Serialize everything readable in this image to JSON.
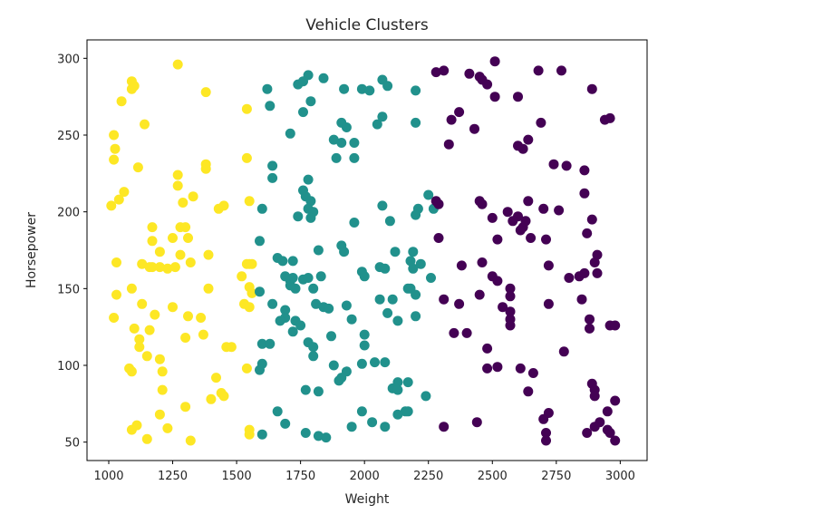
{
  "chart_data": {
    "type": "scatter",
    "title": "Vehicle Clusters",
    "xlabel": "Weight",
    "ylabel": "Horsepower",
    "xlim": [
      915,
      3105
    ],
    "ylim": [
      38,
      312
    ],
    "xticks": [
      1000,
      1250,
      1500,
      1750,
      2000,
      2250,
      2500,
      2750,
      3000
    ],
    "yticks": [
      50,
      100,
      150,
      200,
      250,
      300
    ],
    "grid": false,
    "legend": "none",
    "colors": {
      "cluster_0": "#440154",
      "cluster_1": "#21918c",
      "cluster_2": "#fde725"
    },
    "series": [
      {
        "cluster": 2,
        "color": "#fde725",
        "points": [
          [
            1090,
            285
          ],
          [
            1090,
            280
          ],
          [
            1050,
            272
          ],
          [
            1100,
            282
          ],
          [
            1270,
            296
          ],
          [
            1020,
            250
          ],
          [
            1140,
            257
          ],
          [
            1025,
            241
          ],
          [
            1020,
            234
          ],
          [
            1115,
            229
          ],
          [
            1380,
            278
          ],
          [
            1380,
            231
          ],
          [
            1380,
            228
          ],
          [
            1270,
            224
          ],
          [
            1270,
            217
          ],
          [
            1060,
            213
          ],
          [
            1040,
            208
          ],
          [
            1010,
            204
          ],
          [
            1290,
            206
          ],
          [
            1330,
            210
          ],
          [
            1430,
            202
          ],
          [
            1450,
            204
          ],
          [
            1170,
            190
          ],
          [
            1280,
            190
          ],
          [
            1300,
            190
          ],
          [
            1310,
            183
          ],
          [
            1250,
            183
          ],
          [
            1170,
            181
          ],
          [
            1200,
            174
          ],
          [
            1280,
            172
          ],
          [
            1390,
            172
          ],
          [
            1030,
            167
          ],
          [
            1130,
            166
          ],
          [
            1160,
            164
          ],
          [
            1170,
            164
          ],
          [
            1200,
            164
          ],
          [
            1230,
            163
          ],
          [
            1260,
            164
          ],
          [
            1320,
            167
          ],
          [
            1090,
            150
          ],
          [
            1030,
            146
          ],
          [
            1390,
            150
          ],
          [
            1130,
            140
          ],
          [
            1250,
            138
          ],
          [
            1310,
            132
          ],
          [
            1180,
            133
          ],
          [
            1020,
            131
          ],
          [
            1360,
            131
          ],
          [
            1100,
            124
          ],
          [
            1160,
            123
          ],
          [
            1120,
            117
          ],
          [
            1120,
            112
          ],
          [
            1300,
            118
          ],
          [
            1370,
            120
          ],
          [
            1150,
            106
          ],
          [
            1200,
            104
          ],
          [
            1080,
            98
          ],
          [
            1090,
            96
          ],
          [
            1210,
            96
          ],
          [
            1420,
            92
          ],
          [
            1440,
            82
          ],
          [
            1450,
            80
          ],
          [
            1400,
            78
          ],
          [
            1210,
            84
          ],
          [
            1300,
            73
          ],
          [
            1200,
            68
          ],
          [
            1110,
            61
          ],
          [
            1090,
            58
          ],
          [
            1230,
            59
          ],
          [
            1150,
            52
          ],
          [
            1320,
            51
          ],
          [
            1540,
            267
          ],
          [
            1540,
            235
          ],
          [
            1550,
            207
          ],
          [
            1520,
            158
          ],
          [
            1540,
            166
          ],
          [
            1550,
            166
          ],
          [
            1560,
            166
          ],
          [
            1550,
            151
          ],
          [
            1560,
            147
          ],
          [
            1530,
            140
          ],
          [
            1550,
            138
          ],
          [
            1460,
            112
          ],
          [
            1480,
            112
          ],
          [
            1540,
            98
          ],
          [
            1550,
            58
          ],
          [
            1550,
            55
          ]
        ]
      },
      {
        "cluster": 1,
        "color": "#21918c",
        "points": [
          [
            1620,
            280
          ],
          [
            1780,
            289
          ],
          [
            1740,
            283
          ],
          [
            1760,
            285
          ],
          [
            1840,
            287
          ],
          [
            1920,
            280
          ],
          [
            1990,
            280
          ],
          [
            2020,
            279
          ],
          [
            2070,
            286
          ],
          [
            2090,
            282
          ],
          [
            2200,
            279
          ],
          [
            1790,
            272
          ],
          [
            1630,
            269
          ],
          [
            1760,
            265
          ],
          [
            1910,
            258
          ],
          [
            1930,
            255
          ],
          [
            2050,
            257
          ],
          [
            2070,
            262
          ],
          [
            2200,
            258
          ],
          [
            1710,
            251
          ],
          [
            1880,
            247
          ],
          [
            1910,
            245
          ],
          [
            1960,
            245
          ],
          [
            1890,
            235
          ],
          [
            1960,
            235
          ],
          [
            1640,
            230
          ],
          [
            1640,
            222
          ],
          [
            1780,
            221
          ],
          [
            1760,
            214
          ],
          [
            1770,
            210
          ],
          [
            1790,
            207
          ],
          [
            1780,
            202
          ],
          [
            1800,
            200
          ],
          [
            1740,
            197
          ],
          [
            1790,
            196
          ],
          [
            2070,
            204
          ],
          [
            2100,
            194
          ],
          [
            1960,
            193
          ],
          [
            2210,
            202
          ],
          [
            2250,
            211
          ],
          [
            2200,
            198
          ],
          [
            2270,
            202
          ],
          [
            1600,
            202
          ],
          [
            1590,
            181
          ],
          [
            1660,
            170
          ],
          [
            1680,
            168
          ],
          [
            1720,
            168
          ],
          [
            1820,
            175
          ],
          [
            1910,
            178
          ],
          [
            1920,
            174
          ],
          [
            2060,
            164
          ],
          [
            2080,
            163
          ],
          [
            2120,
            174
          ],
          [
            2190,
            174
          ],
          [
            2220,
            166
          ],
          [
            2180,
            168
          ],
          [
            2190,
            163
          ],
          [
            1690,
            158
          ],
          [
            1720,
            157
          ],
          [
            1730,
            150
          ],
          [
            1710,
            155
          ],
          [
            1710,
            152
          ],
          [
            1760,
            156
          ],
          [
            1780,
            157
          ],
          [
            1830,
            158
          ],
          [
            1800,
            150
          ],
          [
            1990,
            161
          ],
          [
            2000,
            158
          ],
          [
            2170,
            150
          ],
          [
            2180,
            150
          ],
          [
            2200,
            146
          ],
          [
            2260,
            157
          ],
          [
            1590,
            148
          ],
          [
            1640,
            140
          ],
          [
            1690,
            136
          ],
          [
            1690,
            131
          ],
          [
            1670,
            129
          ],
          [
            1730,
            129
          ],
          [
            1720,
            122
          ],
          [
            1750,
            126
          ],
          [
            1810,
            140
          ],
          [
            1780,
            115
          ],
          [
            1840,
            138
          ],
          [
            1860,
            137
          ],
          [
            1870,
            119
          ],
          [
            1930,
            139
          ],
          [
            1950,
            130
          ],
          [
            2000,
            120
          ],
          [
            2060,
            143
          ],
          [
            2090,
            134
          ],
          [
            2110,
            143
          ],
          [
            2200,
            132
          ],
          [
            2130,
            129
          ],
          [
            1600,
            114
          ],
          [
            1630,
            114
          ],
          [
            1800,
            112
          ],
          [
            1600,
            101
          ],
          [
            1590,
            97
          ],
          [
            1800,
            106
          ],
          [
            1880,
            100
          ],
          [
            1930,
            96
          ],
          [
            1990,
            101
          ],
          [
            2040,
            102
          ],
          [
            2080,
            102
          ],
          [
            1900,
            90
          ],
          [
            1910,
            92
          ],
          [
            2000,
            113
          ],
          [
            2110,
            85
          ],
          [
            2130,
            89
          ],
          [
            2170,
            89
          ],
          [
            1770,
            84
          ],
          [
            1820,
            83
          ],
          [
            2130,
            84
          ],
          [
            2240,
            80
          ],
          [
            1990,
            70
          ],
          [
            2170,
            70
          ],
          [
            2160,
            70
          ],
          [
            2130,
            68
          ],
          [
            1660,
            70
          ],
          [
            1690,
            62
          ],
          [
            1600,
            55
          ],
          [
            1770,
            56
          ],
          [
            1820,
            54
          ],
          [
            1850,
            53
          ],
          [
            1950,
            60
          ],
          [
            2030,
            63
          ],
          [
            2080,
            60
          ]
        ]
      },
      {
        "cluster": 0,
        "color": "#440154",
        "points": [
          [
            2280,
            291
          ],
          [
            2310,
            292
          ],
          [
            2410,
            290
          ],
          [
            2450,
            288
          ],
          [
            2460,
            286
          ],
          [
            2480,
            283
          ],
          [
            2510,
            298
          ],
          [
            2510,
            275
          ],
          [
            2600,
            275
          ],
          [
            2680,
            292
          ],
          [
            2770,
            292
          ],
          [
            2890,
            280
          ],
          [
            2370,
            265
          ],
          [
            2340,
            260
          ],
          [
            2430,
            254
          ],
          [
            2690,
            258
          ],
          [
            2940,
            260
          ],
          [
            2960,
            261
          ],
          [
            2330,
            244
          ],
          [
            2600,
            243
          ],
          [
            2620,
            241
          ],
          [
            2640,
            247
          ],
          [
            2740,
            231
          ],
          [
            2790,
            230
          ],
          [
            2860,
            227
          ],
          [
            2280,
            207
          ],
          [
            2290,
            205
          ],
          [
            2450,
            207
          ],
          [
            2460,
            205
          ],
          [
            2640,
            207
          ],
          [
            2700,
            202
          ],
          [
            2760,
            201
          ],
          [
            2860,
            212
          ],
          [
            2500,
            196
          ],
          [
            2560,
            200
          ],
          [
            2600,
            197
          ],
          [
            2580,
            194
          ],
          [
            2620,
            190
          ],
          [
            2630,
            194
          ],
          [
            2610,
            188
          ],
          [
            2890,
            195
          ],
          [
            2520,
            182
          ],
          [
            2650,
            183
          ],
          [
            2710,
            182
          ],
          [
            2870,
            186
          ],
          [
            2290,
            183
          ],
          [
            2380,
            165
          ],
          [
            2460,
            167
          ],
          [
            2720,
            165
          ],
          [
            2800,
            157
          ],
          [
            2840,
            158
          ],
          [
            2860,
            160
          ],
          [
            2900,
            167
          ],
          [
            2910,
            172
          ],
          [
            2910,
            160
          ],
          [
            2570,
            150
          ],
          [
            2450,
            146
          ],
          [
            2500,
            158
          ],
          [
            2520,
            155
          ],
          [
            2570,
            145
          ],
          [
            2570,
            130
          ],
          [
            2570,
            126
          ],
          [
            2310,
            143
          ],
          [
            2370,
            140
          ],
          [
            2540,
            138
          ],
          [
            2570,
            135
          ],
          [
            2720,
            140
          ],
          [
            2850,
            143
          ],
          [
            2880,
            130
          ],
          [
            2880,
            124
          ],
          [
            2960,
            126
          ],
          [
            2980,
            126
          ],
          [
            2350,
            121
          ],
          [
            2400,
            121
          ],
          [
            2480,
            111
          ],
          [
            2780,
            109
          ],
          [
            2480,
            98
          ],
          [
            2520,
            99
          ],
          [
            2610,
            98
          ],
          [
            2660,
            95
          ],
          [
            2640,
            83
          ],
          [
            2720,
            69
          ],
          [
            2700,
            65
          ],
          [
            2710,
            56
          ],
          [
            2710,
            51
          ],
          [
            2890,
            88
          ],
          [
            2900,
            84
          ],
          [
            2900,
            80
          ],
          [
            2980,
            77
          ],
          [
            2950,
            70
          ],
          [
            2920,
            63
          ],
          [
            2900,
            60
          ],
          [
            2950,
            58
          ],
          [
            2960,
            56
          ],
          [
            2980,
            51
          ],
          [
            2870,
            56
          ],
          [
            2440,
            63
          ],
          [
            2310,
            60
          ]
        ]
      }
    ]
  }
}
